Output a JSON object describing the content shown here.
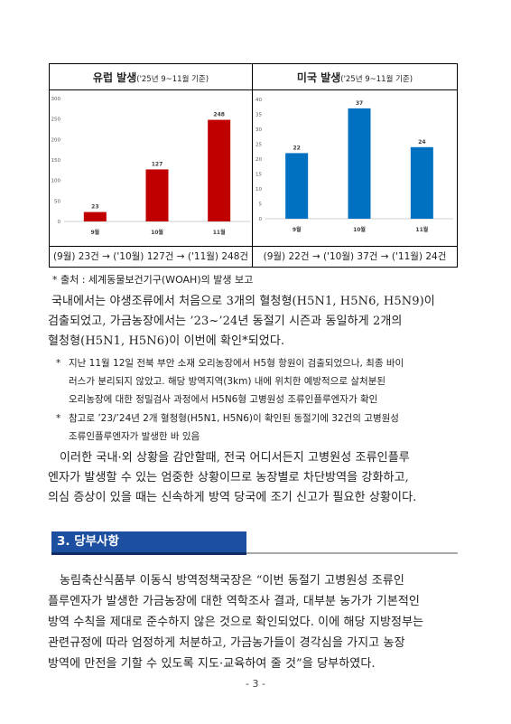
{
  "chart_data": [
    {
      "type": "bar",
      "title": "유럽 발생",
      "subtitle": "('25년 9~11월 기준)",
      "categories": [
        "9월",
        "10월",
        "11월"
      ],
      "values": [
        23,
        127,
        248
      ],
      "ylim": [
        0,
        300
      ],
      "yticks": [
        "0",
        "50",
        "100",
        "150",
        "200",
        "250",
        "300"
      ],
      "bar_color": "#c00000",
      "grid": false,
      "caption": "(9월) 23건 → ('10월) 127건 → ('11월) 248건"
    },
    {
      "type": "bar",
      "title": "미국 발생",
      "subtitle": "('25년 9~11월 기준)",
      "categories": [
        "9월",
        "10월",
        "11월"
      ],
      "values": [
        22,
        37,
        24
      ],
      "ylim": [
        0,
        40
      ],
      "yticks": [
        "0",
        "5",
        "10",
        "15",
        "20",
        "25",
        "30",
        "35",
        "40"
      ],
      "bar_color": "#0070c0",
      "grid": false,
      "caption": "(9월) 22건 → ('10월) 37건 → ('11월) 24건"
    }
  ],
  "source_note": "* 출처 : 세계동물보건기구(WOAH)의 발생 보고",
  "paragraph1": [
    "국내에서는 야생조류에서 처음으로 3개의 혈청형(H5N1, H5N6, H5N9)이",
    "검출되었고, 가금농장에서는 ’23~’24년 동절기 시즌과 동일하게 2개의",
    "혈청형(H5N1, H5N6)이 이번에 확인*되었다."
  ],
  "note1": [
    "지난 11월 12일 전북 부안 소재 오리농장에서 H5형 항원이 검출되었으나, 최종 바이",
    "러스가 분리되지 않았고. 해당 방역지역(3km) 내에 위치한 예방적으로 살처분된",
    "오리농장에 대한 정밀검사 과정에서 H5N6형 고병원성 조류인플루엔자가 확인"
  ],
  "note2": [
    "참고로 ’23/’24년 2개 혈청형(H5N1, H5N6)이 확인된 동절기에 32건의 고병원성",
    "조류인플루엔자가 발생한 바 있음"
  ],
  "note_bullet": "*",
  "paragraph2": [
    "이러한 국내·외 상황을 감안할때, 전국 어디서든지 고병원성 조류인플루",
    "엔자가 발생할 수 있는 엄중한 상황이므로 농장별로 차단방역을 강화하고,",
    "의심 증상이 있을 때는 신속하게 방역 당국에 조기 신고가 필요한 상황이다."
  ],
  "section_title": "3. 당부사항",
  "paragraph3": [
    "농림축산식품부 이동식 방역정책국장은 “이번 동절기 고병원성 조류인",
    "플루엔자가 발생한 가금농장에 대한 역학조사 결과, 대부분 농가가 기본적인",
    "방역 수칙을 제대로 준수하지 않은 것으로 확인되었다. 이에 해당 지방정부는",
    "관련규정에 따라 엄정하게 처분하고, 가금농가들이 경각심을 가지고 농장",
    "방역에 만전을 기할 수 있도록 지도·교육하여 줄 것”을 당부하였다."
  ],
  "page_number": "- 3 -"
}
